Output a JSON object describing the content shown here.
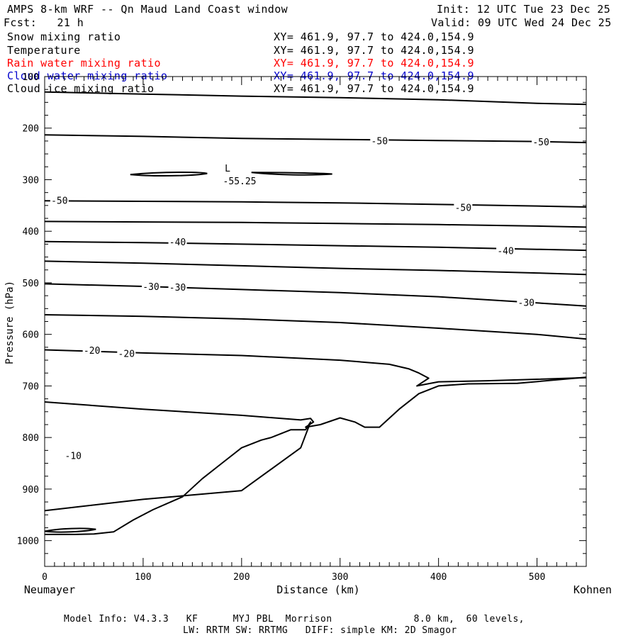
{
  "header": {
    "title": "AMPS 8-km WRF -- Qn Maud Land Coast window",
    "init": "Init: 12 UTC Tue 23 Dec 25",
    "fcst": "Fcst:   21 h",
    "valid": "Valid: 09 UTC Wed 24 Dec 25"
  },
  "fields": [
    {
      "name": "Snow mixing ratio",
      "xy": "XY= 461.9, 97.7 to 424.0,154.9",
      "color": "#000000"
    },
    {
      "name": "Temperature",
      "xy": "XY= 461.9, 97.7 to 424.0,154.9",
      "color": "#000000"
    },
    {
      "name": "Rain water mixing ratio",
      "xy": "XY= 461.9, 97.7 to 424.0,154.9",
      "color": "#ff0000"
    },
    {
      "name": "Cloud water mixing ratio",
      "xy": "XY= 461.9, 97.7 to 424.0,154.9",
      "color": "#0000cc"
    },
    {
      "name": "Cloud ice mixing ratio",
      "xy": "XY= 461.9, 97.7 to 424.0,154.9",
      "color": "#000000"
    }
  ],
  "footer": {
    "line1": "Model Info: V4.3.3   KF      MYJ PBL  Morrison              8.0 km,  60 levels,",
    "line2": "LW: RRTM SW: RRTMG   DIFF: simple KM: 2D Smagor"
  },
  "chart_data": {
    "type": "line",
    "subtype": "vertical cross-section contour",
    "xlabel": "Distance (km)",
    "ylabel": "Pressure (hPa)",
    "xlim": [
      0,
      550
    ],
    "ylim": [
      1050,
      100
    ],
    "x_ticks": [
      0,
      100,
      200,
      300,
      400,
      500
    ],
    "y_ticks": [
      100,
      200,
      300,
      400,
      500,
      600,
      700,
      800,
      900,
      1000
    ],
    "left_endpoint": "Neumayer",
    "right_endpoint": "Kohnen",
    "low_marker": {
      "label": "L",
      "value": "-55.25",
      "x": 180,
      "p": 283
    },
    "contour_labels": [
      {
        "text": "-50",
        "x": 340,
        "p": 226
      },
      {
        "text": "-50",
        "x": 504,
        "p": 228
      },
      {
        "text": "-50",
        "x": 15,
        "p": 341
      },
      {
        "text": "-50",
        "x": 425,
        "p": 355
      },
      {
        "text": "-40",
        "x": 135,
        "p": 422
      },
      {
        "text": "-40",
        "x": 468,
        "p": 439
      },
      {
        "text": "-30",
        "x": 108,
        "p": 508
      },
      {
        "text": "-30",
        "x": 135,
        "p": 510
      },
      {
        "text": "-30",
        "x": 489,
        "p": 539
      },
      {
        "text": "-20",
        "x": 48,
        "p": 632
      },
      {
        "text": "-20",
        "x": 83,
        "p": 638
      },
      {
        "text": "-10",
        "x": 29,
        "p": 836
      }
    ],
    "series": [
      {
        "name": "contour-a",
        "x": [
          0,
          100,
          200,
          300,
          400,
          500,
          550
        ],
        "p": [
          130,
          134,
          138,
          141,
          145,
          152,
          154
        ]
      },
      {
        "name": "contour-b",
        "x": [
          0,
          100,
          200,
          300,
          400,
          500,
          550
        ],
        "p": [
          213,
          216,
          220,
          222,
          224,
          226,
          228
        ]
      },
      {
        "name": "contour-c",
        "x": [
          0,
          100,
          200,
          300,
          400,
          500,
          550
        ],
        "p": [
          341,
          342,
          343,
          345,
          348,
          351,
          353
        ]
      },
      {
        "name": "contour-d",
        "x": [
          0,
          100,
          200,
          300,
          400,
          500,
          550
        ],
        "p": [
          381,
          382,
          383,
          385,
          387,
          390,
          392
        ]
      },
      {
        "name": "contour-e",
        "x": [
          0,
          100,
          200,
          300,
          400,
          500,
          550
        ],
        "p": [
          420,
          422,
          425,
          428,
          431,
          435,
          437
        ]
      },
      {
        "name": "contour-f",
        "x": [
          0,
          100,
          200,
          300,
          400,
          500,
          550
        ],
        "p": [
          458,
          462,
          467,
          472,
          476,
          481,
          484
        ]
      },
      {
        "name": "contour-g",
        "x": [
          0,
          100,
          200,
          300,
          400,
          500,
          550
        ],
        "p": [
          502,
          507,
          513,
          519,
          527,
          539,
          545
        ]
      },
      {
        "name": "contour-h",
        "x": [
          0,
          100,
          200,
          300,
          400,
          500,
          550
        ],
        "p": [
          562,
          565,
          570,
          577,
          588,
          600,
          609
        ]
      },
      {
        "name": "contour-i",
        "x": [
          0,
          100,
          200,
          300,
          350,
          370,
          380,
          390,
          378,
          400,
          450,
          500,
          550
        ],
        "p": [
          630,
          636,
          641,
          650,
          658,
          667,
          675,
          685,
          700,
          692,
          690,
          687,
          684
        ]
      },
      {
        "name": "contour-j",
        "x": [
          0,
          100,
          200,
          260,
          270,
          265,
          250,
          230,
          220,
          200,
          180,
          160,
          140,
          110,
          90,
          70,
          50,
          30,
          0
        ],
        "p": [
          942,
          920,
          903,
          820,
          770,
          785,
          785,
          800,
          805,
          820,
          850,
          880,
          915,
          940,
          960,
          983,
          987,
          988,
          988
        ]
      },
      {
        "name": "contour-k",
        "x": [
          0,
          100,
          200,
          260,
          270,
          273,
          265,
          280,
          300,
          315,
          325,
          340,
          360,
          380,
          400,
          430,
          480,
          550
        ],
        "p": [
          731,
          745,
          757,
          766,
          763,
          770,
          780,
          775,
          762,
          770,
          780,
          780,
          745,
          715,
          700,
          696,
          695,
          683
        ]
      }
    ]
  }
}
